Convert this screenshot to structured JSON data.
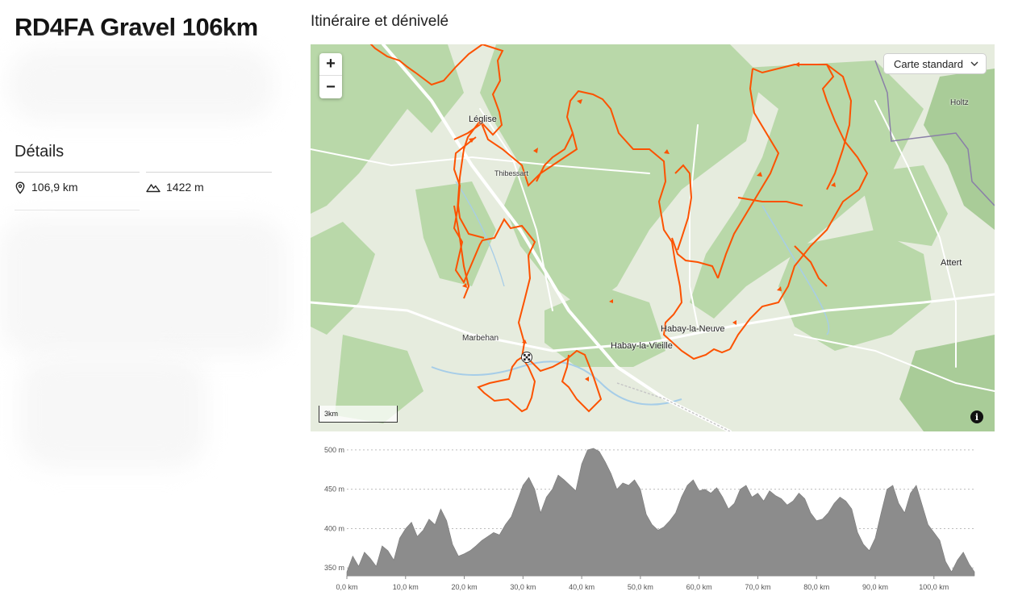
{
  "route": {
    "title": "RD4FA Gravel 106km"
  },
  "details": {
    "heading": "Détails",
    "distance": "106,9 km",
    "elevation_gain": "1422 m",
    "distance_icon": "location-pin-icon",
    "elevation_icon": "mountain-icon"
  },
  "map_section": {
    "title": "Itinéraire et dénivelé",
    "zoom_in": "+",
    "zoom_out": "−",
    "style_select": "Carte standard",
    "scale_label": "3km",
    "info_label": "i",
    "places": {
      "leglise": "Léglise",
      "thibessart": "Thibessart",
      "holtz": "Holtz",
      "attert": "Attert",
      "marbehan": "Marbehan",
      "habay_neuve": "Habay-la-Neuve",
      "habay_vieille": "Habay-la-Vieille"
    },
    "colors": {
      "route": "#fc5200",
      "forest": "#b7d7a6",
      "field": "#e4ecda",
      "road": "#ffffff",
      "border": "#8a7fa8"
    }
  },
  "chart_data": {
    "type": "area",
    "title": "",
    "xlabel": "",
    "ylabel": "",
    "x_ticks": [
      "0,0 km",
      "10,0 km",
      "20,0 km",
      "30,0 km",
      "40,0 km",
      "50,0 km",
      "60,0 km",
      "70,0 km",
      "80,0 km",
      "90,0 km",
      "100,0 km"
    ],
    "y_ticks": [
      "350 m",
      "400 m",
      "450 m",
      "500 m"
    ],
    "xlim": [
      0,
      106.9
    ],
    "ylim": [
      340,
      505
    ],
    "grid": true,
    "color": "#8c8c8c",
    "x": [
      0,
      1,
      2,
      3,
      4,
      5,
      6,
      7,
      8,
      9,
      10,
      11,
      12,
      13,
      14,
      15,
      16,
      17,
      18,
      19,
      20,
      21,
      22,
      23,
      24,
      25,
      26,
      27,
      28,
      29,
      30,
      31,
      32,
      33,
      34,
      35,
      36,
      37,
      38,
      39,
      40,
      41,
      42,
      43,
      44,
      45,
      46,
      47,
      48,
      49,
      50,
      51,
      52,
      53,
      54,
      55,
      56,
      57,
      58,
      59,
      60,
      61,
      62,
      63,
      64,
      65,
      66,
      67,
      68,
      69,
      70,
      71,
      72,
      73,
      74,
      75,
      76,
      77,
      78,
      79,
      80,
      81,
      82,
      83,
      84,
      85,
      86,
      87,
      88,
      89,
      90,
      91,
      92,
      93,
      94,
      95,
      96,
      97,
      98,
      99,
      100,
      101,
      102,
      103,
      104,
      105,
      106,
      106.9
    ],
    "y": [
      345,
      365,
      352,
      370,
      362,
      352,
      378,
      372,
      360,
      388,
      400,
      408,
      390,
      398,
      412,
      405,
      425,
      410,
      380,
      365,
      368,
      372,
      378,
      385,
      390,
      395,
      392,
      405,
      415,
      435,
      455,
      465,
      450,
      420,
      440,
      450,
      468,
      462,
      455,
      448,
      482,
      500,
      502,
      498,
      485,
      470,
      450,
      458,
      455,
      462,
      450,
      418,
      405,
      398,
      402,
      410,
      420,
      440,
      455,
      462,
      448,
      450,
      445,
      452,
      440,
      425,
      432,
      450,
      455,
      440,
      445,
      435,
      448,
      442,
      438,
      430,
      435,
      445,
      438,
      420,
      410,
      412,
      420,
      432,
      440,
      435,
      425,
      395,
      380,
      372,
      388,
      420,
      450,
      455,
      432,
      420,
      445,
      455,
      430,
      405,
      395,
      385,
      358,
      345,
      360,
      370,
      355,
      345
    ]
  }
}
